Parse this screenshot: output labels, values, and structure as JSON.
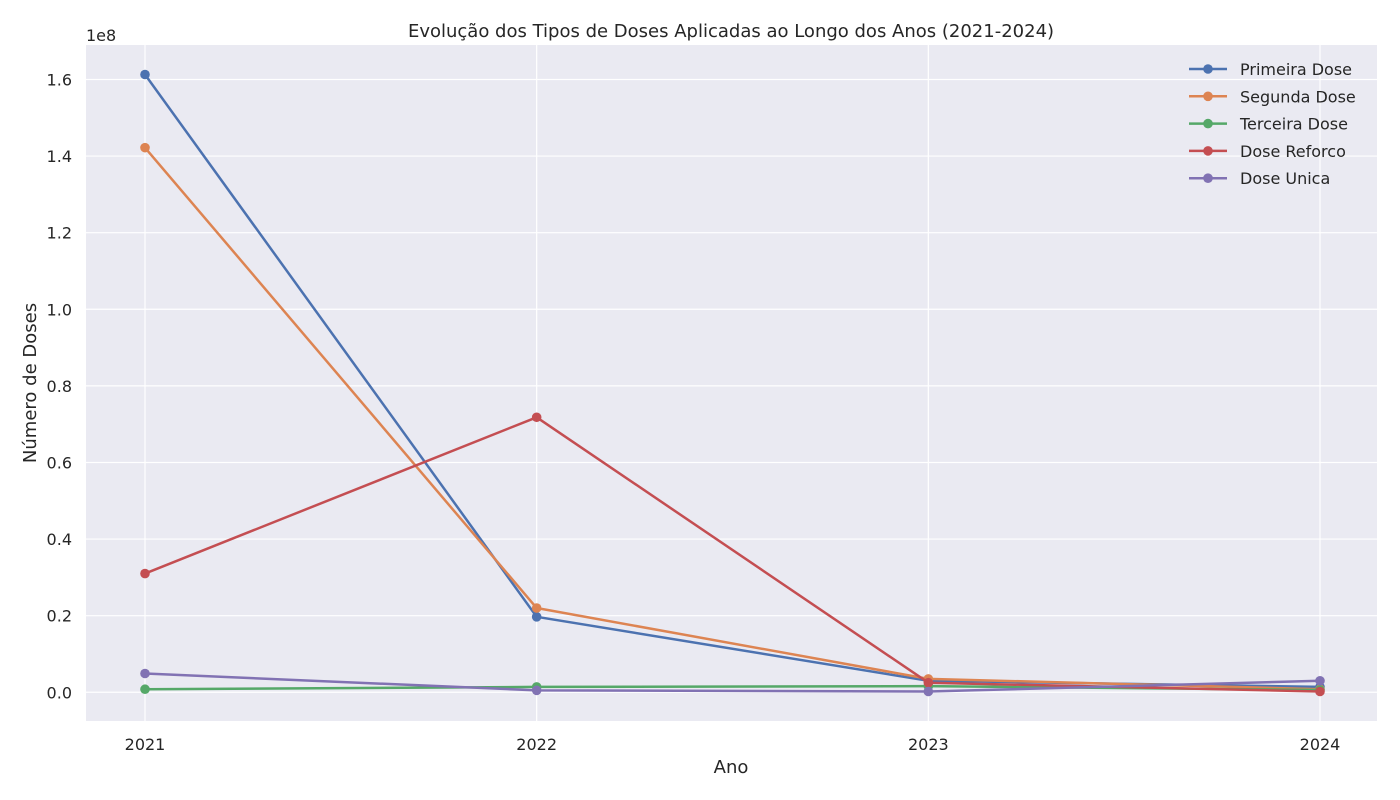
{
  "chart_data": {
    "type": "line",
    "title": "Evolução dos Tipos de Doses Aplicadas ao Longo dos Anos (2021-2024)",
    "xlabel": "Ano",
    "ylabel": "Número de Doses",
    "y_offset_label": "1e8",
    "x": [
      "2021",
      "2022",
      "2023",
      "2024"
    ],
    "ylim": [
      -7500000,
      169000000
    ],
    "y_ticks": [
      0,
      20000000,
      40000000,
      60000000,
      80000000,
      100000000,
      120000000,
      140000000,
      160000000
    ],
    "y_tick_labels": [
      "0.0",
      "0.2",
      "0.4",
      "0.6",
      "0.8",
      "1.0",
      "1.2",
      "1.4",
      "1.6"
    ],
    "grid": true,
    "legend_position": "top-right",
    "series": [
      {
        "name": "Primeira Dose",
        "color": "#4c72b0",
        "values": [
          161300000,
          19700000,
          3000000,
          1400000
        ]
      },
      {
        "name": "Segunda Dose",
        "color": "#dd8452",
        "values": [
          142200000,
          22000000,
          3500000,
          800000
        ]
      },
      {
        "name": "Terceira Dose",
        "color": "#55a868",
        "values": [
          800000,
          1400000,
          1600000,
          600000
        ]
      },
      {
        "name": "Dose Reforco",
        "color": "#c44e52",
        "values": [
          31000000,
          71800000,
          2500000,
          200000
        ]
      },
      {
        "name": "Dose Unica",
        "color": "#8172b3",
        "values": [
          4900000,
          500000,
          200000,
          3000000
        ]
      }
    ]
  }
}
